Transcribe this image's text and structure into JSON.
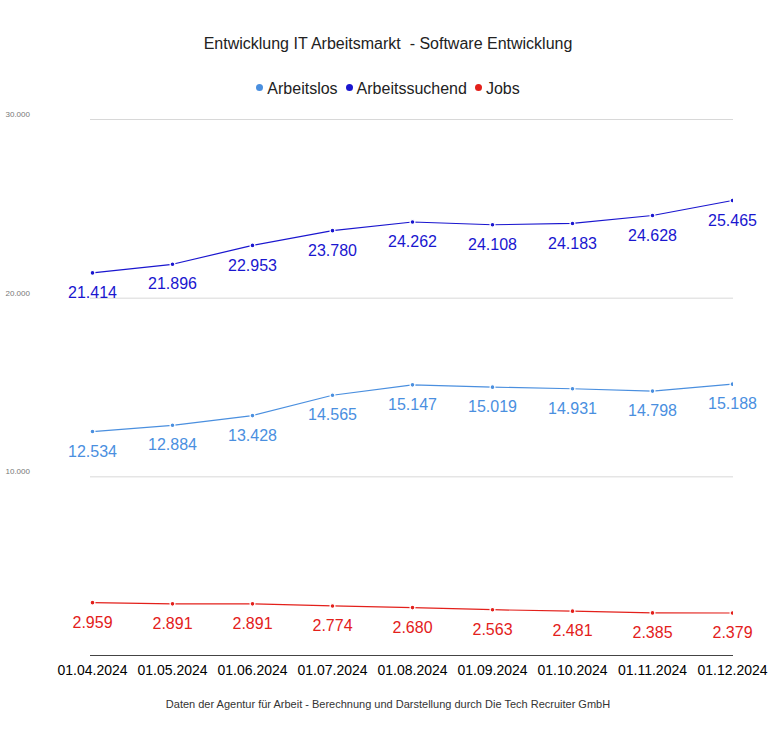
{
  "chart_data": {
    "type": "line",
    "title": "Entwicklung IT Arbeitsmarkt  - Software Entwicklung",
    "caption": "Daten der Agentur für Arbeit - Berechnung und Darstellung durch Die Tech Recruiter GmbH",
    "x": [
      "01.04.2024",
      "01.05.2024",
      "01.06.2024",
      "01.07.2024",
      "01.08.2024",
      "01.09.2024",
      "01.10.2024",
      "01.11.2024",
      "01.12.2024"
    ],
    "series": [
      {
        "name": "Arbeitslos",
        "color": "#4a8fdf",
        "values": [
          12534,
          12884,
          13428,
          14565,
          15147,
          15019,
          14931,
          14798,
          15188
        ],
        "value_labels": [
          "12.534",
          "12.884",
          "13.428",
          "14.565",
          "15.147",
          "15.019",
          "14.931",
          "14.798",
          "15.188"
        ]
      },
      {
        "name": "Arbeitssuchend",
        "color": "#1a16cf",
        "values": [
          21414,
          21896,
          22953,
          23780,
          24262,
          24108,
          24183,
          24628,
          25465
        ],
        "value_labels": [
          "21.414",
          "21.896",
          "22.953",
          "23.780",
          "24.262",
          "24.108",
          "24.183",
          "24.628",
          "25.465"
        ]
      },
      {
        "name": "Jobs",
        "color": "#e3201b",
        "values": [
          2959,
          2891,
          2891,
          2774,
          2680,
          2563,
          2481,
          2385,
          2379
        ],
        "value_labels": [
          "2.959",
          "2.891",
          "2.891",
          "2.774",
          "2.680",
          "2.563",
          "2.481",
          "2.385",
          "2.379"
        ]
      }
    ],
    "ylim": [
      0,
      30000
    ],
    "yticks": [
      {
        "value": 10000,
        "label": "10.000"
      },
      {
        "value": 20000,
        "label": "20.000"
      },
      {
        "value": 30000,
        "label": "30.000"
      }
    ],
    "grid": true,
    "legend": "top",
    "data_labels": true,
    "marker": "circle",
    "line_style": "solid"
  }
}
